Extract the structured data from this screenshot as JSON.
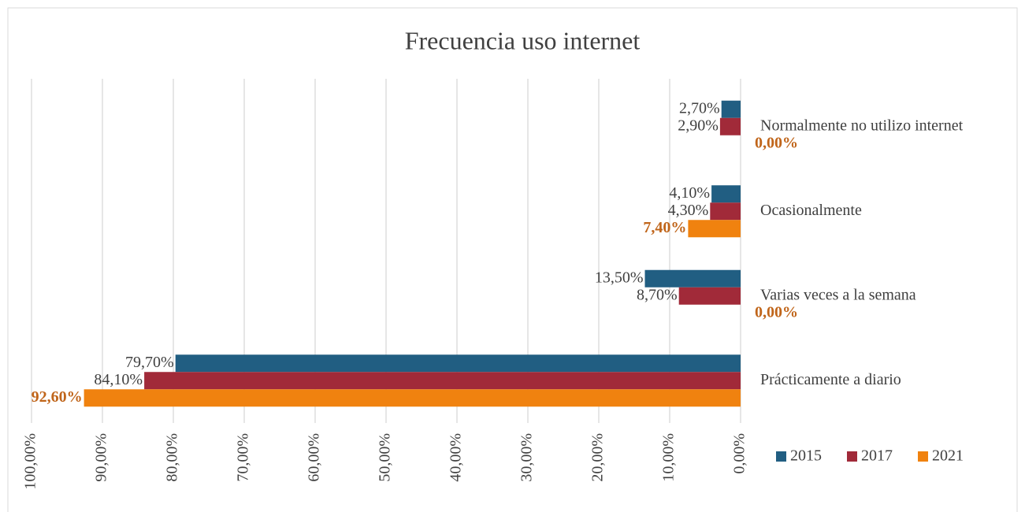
{
  "chart_data": {
    "type": "bar",
    "orientation": "horizontal",
    "reversed_x": true,
    "title": "Frecuencia uso internet",
    "categories": [
      "Normalmente no utilizo internet",
      "Ocasionalmente",
      "Varias veces a la semana",
      "Prácticamente a diario"
    ],
    "series": [
      {
        "name": "2015",
        "color": "#215e82",
        "values": [
          2.7,
          4.1,
          13.5,
          79.7
        ],
        "value_labels": [
          "2,70%",
          "4,10%",
          "13,50%",
          "79,70%"
        ]
      },
      {
        "name": "2017",
        "color": "#a12a39",
        "values": [
          2.9,
          4.3,
          8.7,
          84.1
        ],
        "value_labels": [
          "2,90%",
          "4,30%",
          "8,70%",
          "84,10%"
        ]
      },
      {
        "name": "2021",
        "color": "#f0820f",
        "label_color": "#c0651a",
        "values": [
          0,
          7.4,
          0,
          92.6
        ],
        "value_labels": [
          "0,00%",
          "7,40%",
          "0,00%",
          "92,60%"
        ]
      }
    ],
    "xlim": [
      0,
      100
    ],
    "xticks": [
      {
        "value": 0,
        "label": "0,00%"
      },
      {
        "value": 10,
        "label": "10,00%"
      },
      {
        "value": 20,
        "label": "20,00%"
      },
      {
        "value": 30,
        "label": "30,00%"
      },
      {
        "value": 40,
        "label": "40,00%"
      },
      {
        "value": 50,
        "label": "50,00%"
      },
      {
        "value": 60,
        "label": "60,00%"
      },
      {
        "value": 70,
        "label": "70,00%"
      },
      {
        "value": 80,
        "label": "80,00%"
      },
      {
        "value": 90,
        "label": "90,00%"
      },
      {
        "value": 100,
        "label": "100,00%"
      }
    ],
    "grid": true,
    "legend": "bottom-right"
  }
}
